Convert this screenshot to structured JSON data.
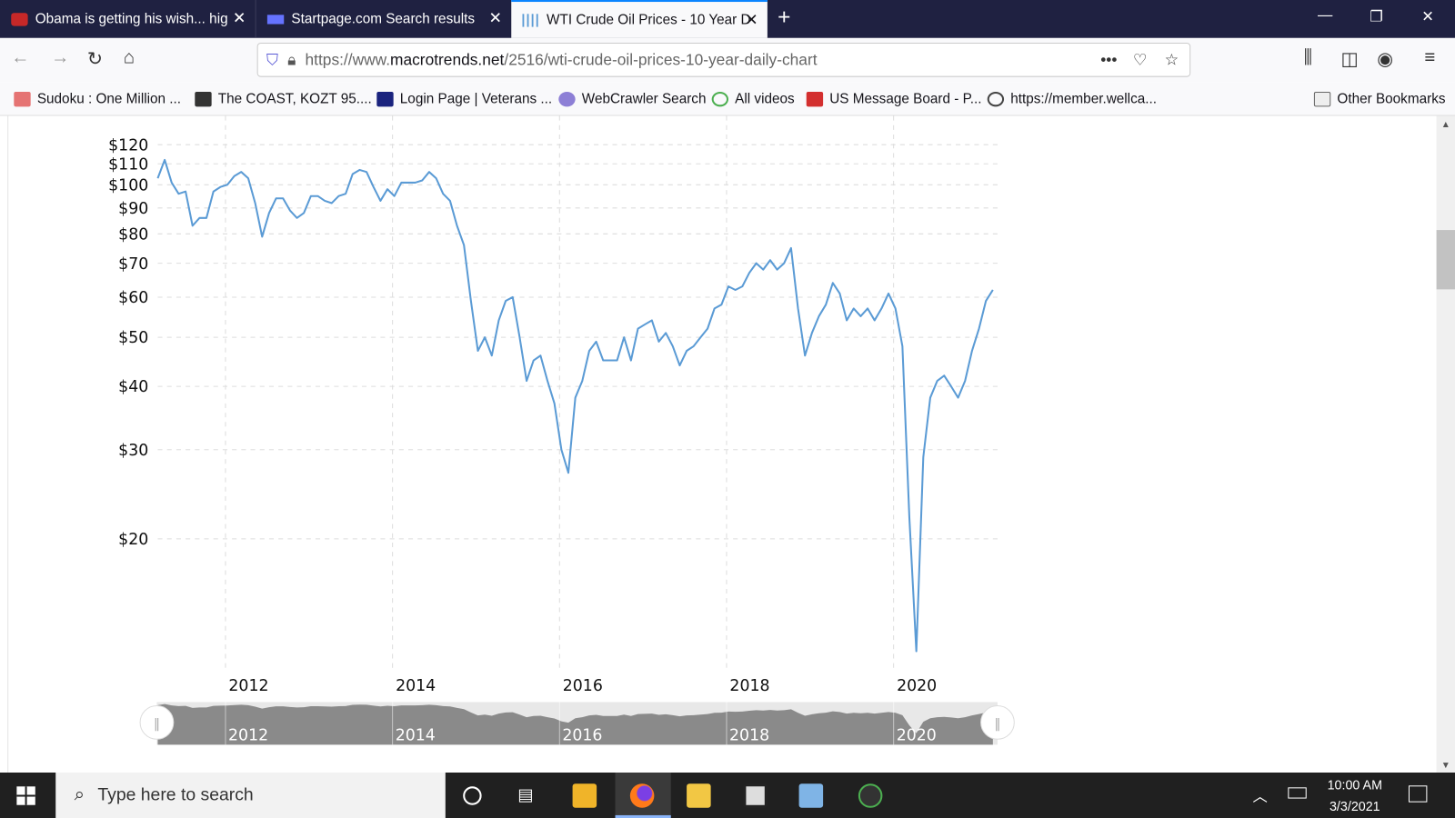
{
  "browser": {
    "tabs": [
      {
        "title": "Obama is getting his wish... hig",
        "active": false,
        "icon": "eagle-icon"
      },
      {
        "title": "Startpage.com Search results",
        "active": false,
        "icon": "startpage-icon"
      },
      {
        "title": "WTI Crude Oil Prices - 10 Year D",
        "active": true,
        "icon": "macrotrends-icon"
      }
    ],
    "url_prefix": "https://www.",
    "url_host": "macrotrends.net",
    "url_path": "/2516/wti-crude-oil-prices-10-year-daily-chart",
    "bookmarks": [
      {
        "label": "Sudoku : One Million ...",
        "color": "#c0392b"
      },
      {
        "label": "The COAST, KOZT 95....",
        "color": "#222"
      },
      {
        "label": "Login Page | Veterans ...",
        "color": "#1a237e"
      },
      {
        "label": "WebCrawler Search",
        "color": "#6a5acd"
      },
      {
        "label": "All videos",
        "color": "#4caf50"
      },
      {
        "label": "US Message Board - P...",
        "color": "#d32f2f"
      },
      {
        "label": "https://member.wellca...",
        "color": "#555"
      }
    ],
    "other_bookmarks": "Other Bookmarks"
  },
  "chart_data": {
    "type": "line",
    "scale": "log",
    "color": "#5b9bd5",
    "grid": true,
    "y_ticks": [
      "$20",
      "$30",
      "$40",
      "$50",
      "$60",
      "$70",
      "$80",
      "$90",
      "$100",
      "$110",
      "$120"
    ],
    "y_tick_values": [
      20,
      30,
      40,
      50,
      60,
      70,
      80,
      90,
      100,
      110,
      120
    ],
    "x_ticks": [
      "2012",
      "2014",
      "2016",
      "2018",
      "2020"
    ],
    "ylim": [
      11,
      130
    ],
    "xlim": [
      "2011-03",
      "2021-03"
    ],
    "x": [
      "2011-03",
      "2011-04",
      "2011-05",
      "2011-06",
      "2011-07",
      "2011-08",
      "2011-09",
      "2011-10",
      "2011-11",
      "2011-12",
      "2012-01",
      "2012-02",
      "2012-03",
      "2012-04",
      "2012-05",
      "2012-06",
      "2012-07",
      "2012-08",
      "2012-09",
      "2012-10",
      "2012-11",
      "2012-12",
      "2013-01",
      "2013-02",
      "2013-03",
      "2013-04",
      "2013-05",
      "2013-06",
      "2013-07",
      "2013-08",
      "2013-09",
      "2013-10",
      "2013-11",
      "2013-12",
      "2014-01",
      "2014-02",
      "2014-03",
      "2014-04",
      "2014-05",
      "2014-06",
      "2014-07",
      "2014-08",
      "2014-09",
      "2014-10",
      "2014-11",
      "2014-12",
      "2015-01",
      "2015-02",
      "2015-03",
      "2015-04",
      "2015-05",
      "2015-06",
      "2015-07",
      "2015-08",
      "2015-09",
      "2015-10",
      "2015-11",
      "2015-12",
      "2016-01",
      "2016-02",
      "2016-03",
      "2016-04",
      "2016-05",
      "2016-06",
      "2016-07",
      "2016-08",
      "2016-09",
      "2016-10",
      "2016-11",
      "2016-12",
      "2017-01",
      "2017-02",
      "2017-03",
      "2017-04",
      "2017-05",
      "2017-06",
      "2017-07",
      "2017-08",
      "2017-09",
      "2017-10",
      "2017-11",
      "2017-12",
      "2018-01",
      "2018-02",
      "2018-03",
      "2018-04",
      "2018-05",
      "2018-06",
      "2018-07",
      "2018-08",
      "2018-09",
      "2018-10",
      "2018-11",
      "2018-12",
      "2019-01",
      "2019-02",
      "2019-03",
      "2019-04",
      "2019-05",
      "2019-06",
      "2019-07",
      "2019-08",
      "2019-09",
      "2019-10",
      "2019-11",
      "2019-12",
      "2020-01",
      "2020-02",
      "2020-03",
      "2020-04",
      "2020-05",
      "2020-06",
      "2020-07",
      "2020-08",
      "2020-09",
      "2020-10",
      "2020-11",
      "2020-12",
      "2021-01",
      "2021-02",
      "2021-03"
    ],
    "values": [
      103,
      112,
      101,
      96,
      97,
      83,
      86,
      86,
      97,
      99,
      100,
      104,
      106,
      103,
      92,
      79,
      88,
      94,
      94,
      89,
      86,
      88,
      95,
      95,
      93,
      92,
      95,
      96,
      105,
      107,
      106,
      99,
      93,
      98,
      95,
      101,
      101,
      101,
      102,
      106,
      103,
      96,
      93,
      83,
      76,
      59,
      47,
      50,
      46,
      54,
      59,
      60,
      50,
      41,
      45,
      46,
      41,
      37,
      30,
      27,
      38,
      41,
      47,
      49,
      45,
      45,
      45,
      50,
      45,
      52,
      53,
      54,
      49,
      51,
      48,
      44,
      47,
      48,
      50,
      52,
      57,
      58,
      63,
      62,
      63,
      67,
      70,
      68,
      71,
      68,
      70,
      75,
      57,
      46,
      51,
      55,
      58,
      64,
      61,
      54,
      57,
      55,
      57,
      54,
      57,
      61,
      57,
      48,
      22,
      12,
      29,
      38,
      41,
      42,
      40,
      38,
      41,
      47,
      52,
      59,
      62
    ]
  },
  "navigator": {
    "labels": [
      "2012",
      "2014",
      "2016",
      "2018",
      "2020"
    ]
  },
  "taskbar": {
    "search_placeholder": "Type here to search",
    "time": "10:00 AM",
    "date": "3/3/2021"
  }
}
